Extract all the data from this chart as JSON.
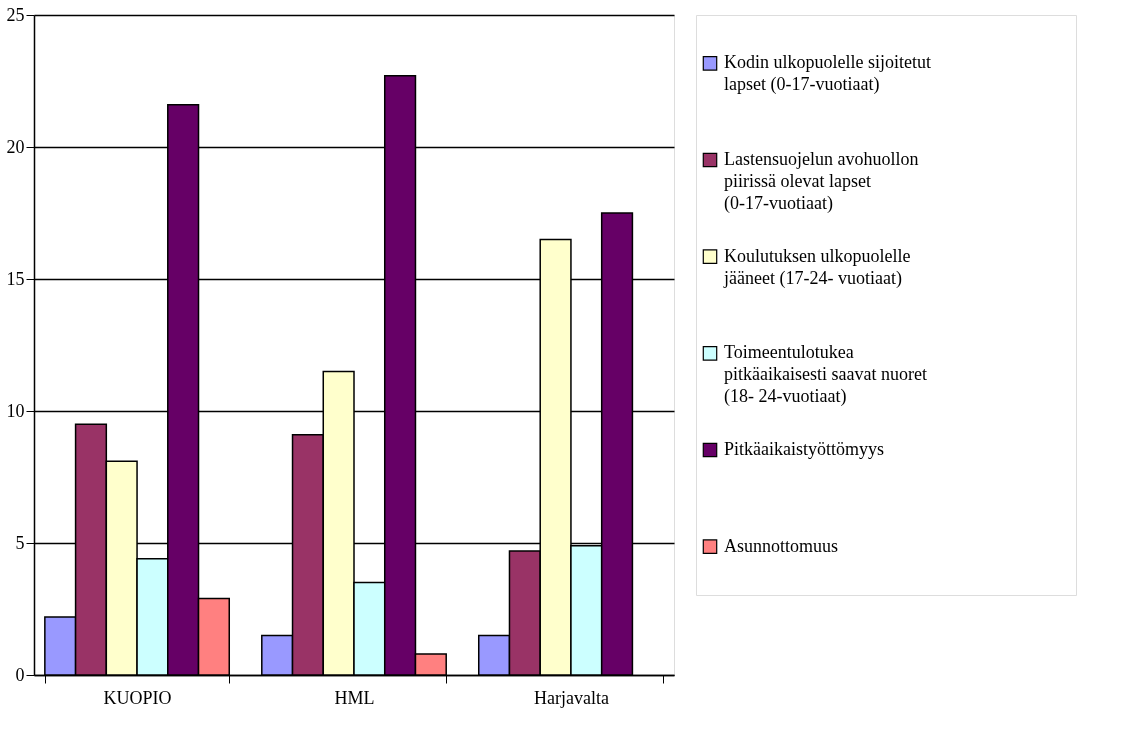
{
  "chart_data": {
    "type": "bar",
    "categories": [
      "KUOPIO",
      "HML",
      "Harjavalta"
    ],
    "series": [
      {
        "name": "Kodin ulkopuolelle sijoitetut lapset (0-17-vuotiaat)",
        "color": "#9999ff",
        "values": [
          2.2,
          1.5,
          1.5
        ]
      },
      {
        "name": "Lastensuojelun avohuollon piirissä olevat lapset (0-17-vuotiaat)",
        "color": "#993366",
        "values": [
          9.5,
          9.1,
          4.7
        ]
      },
      {
        "name": "Koulutuksen ulkopuolelle jääneet (17-24- vuotiaat)",
        "color": "#ffffcc",
        "values": [
          8.1,
          11.5,
          16.5
        ]
      },
      {
        "name": "Toimeentulotukea pitkäaikaisesti saavat nuoret (18- 24-vuotiaat)",
        "color": "#ccffff",
        "values": [
          4.4,
          3.5,
          4.9
        ]
      },
      {
        "name": "Pitkäaikaistyöttömyys",
        "color": "#660066",
        "values": [
          21.6,
          22.7,
          17.5
        ]
      },
      {
        "name": "Asunnottomuus",
        "color": "#ff8080",
        "values": [
          2.9,
          0.8,
          null
        ]
      }
    ],
    "ylim": [
      0,
      25
    ],
    "yticks": [
      0,
      5,
      10,
      15,
      20,
      25
    ],
    "grid": "y",
    "legend": "right"
  }
}
